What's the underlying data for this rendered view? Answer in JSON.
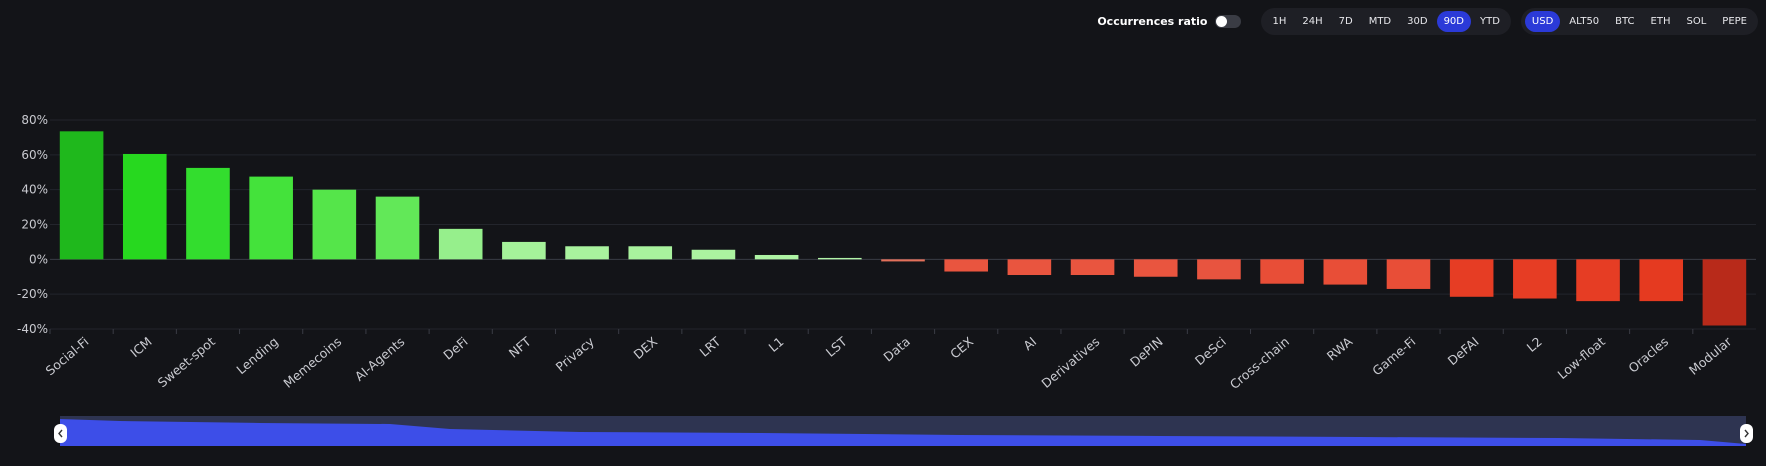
{
  "controls": {
    "occurrences_label": "Occurrences ratio",
    "occurrences_enabled": false,
    "timeframes": [
      "1H",
      "24H",
      "7D",
      "MTD",
      "30D",
      "90D",
      "YTD"
    ],
    "active_timeframe": "90D",
    "bases": [
      "USD",
      "ALT50",
      "BTC",
      "ETH",
      "SOL",
      "PEPE"
    ],
    "active_base": "USD",
    "accent_color": "#2b3ad8"
  },
  "chart_data": {
    "type": "bar",
    "title": "",
    "xlabel": "",
    "ylabel": "",
    "ylim": [
      -40,
      80
    ],
    "yticks": [
      80,
      60,
      40,
      20,
      0,
      -20,
      -40
    ],
    "ytick_labels": [
      "80%",
      "60%",
      "40%",
      "20%",
      "0%",
      "-20%",
      "-40%"
    ],
    "grid": true,
    "categories": [
      "Social-Fi",
      "ICM",
      "Sweet-spot",
      "Lending",
      "Memecoins",
      "AI-Agents",
      "DeFi",
      "NFT",
      "Privacy",
      "DEX",
      "LRT",
      "L1",
      "LST",
      "Data",
      "CEX",
      "AI",
      "Derivatives",
      "DePIN",
      "DeSci",
      "Cross-chain",
      "RWA",
      "Game-Fi",
      "DeFAI",
      "L2",
      "Low-float",
      "Oracles",
      "Modular"
    ],
    "values": [
      73.5,
      60.5,
      52.5,
      47.5,
      40,
      36,
      17.5,
      10,
      7.5,
      7.5,
      5.5,
      2.5,
      0.8,
      -1.2,
      -7,
      -9,
      -9,
      -10,
      -11.5,
      -14,
      -14.5,
      -17,
      -21.5,
      -22.5,
      -24,
      -24,
      -38
    ],
    "colors": [
      "#1fb81c",
      "#27d81f",
      "#33dd2e",
      "#44e23b",
      "#55e54a",
      "#62e858",
      "#96ef8c",
      "#a5f29a",
      "#a9f29e",
      "#a9f29e",
      "#abf3a0",
      "#aef3a4",
      "#b2f4a8",
      "#e3705a",
      "#e9553f",
      "#e9553f",
      "#e9553f",
      "#e9553f",
      "#e8543f",
      "#e84e37",
      "#e84e37",
      "#e84e37",
      "#e63d24",
      "#e63d24",
      "#e63d24",
      "#e53a20",
      "#b82a1a"
    ]
  },
  "slider": {
    "fill_color": "#3d4ee8",
    "track_color": "#2e3451"
  }
}
